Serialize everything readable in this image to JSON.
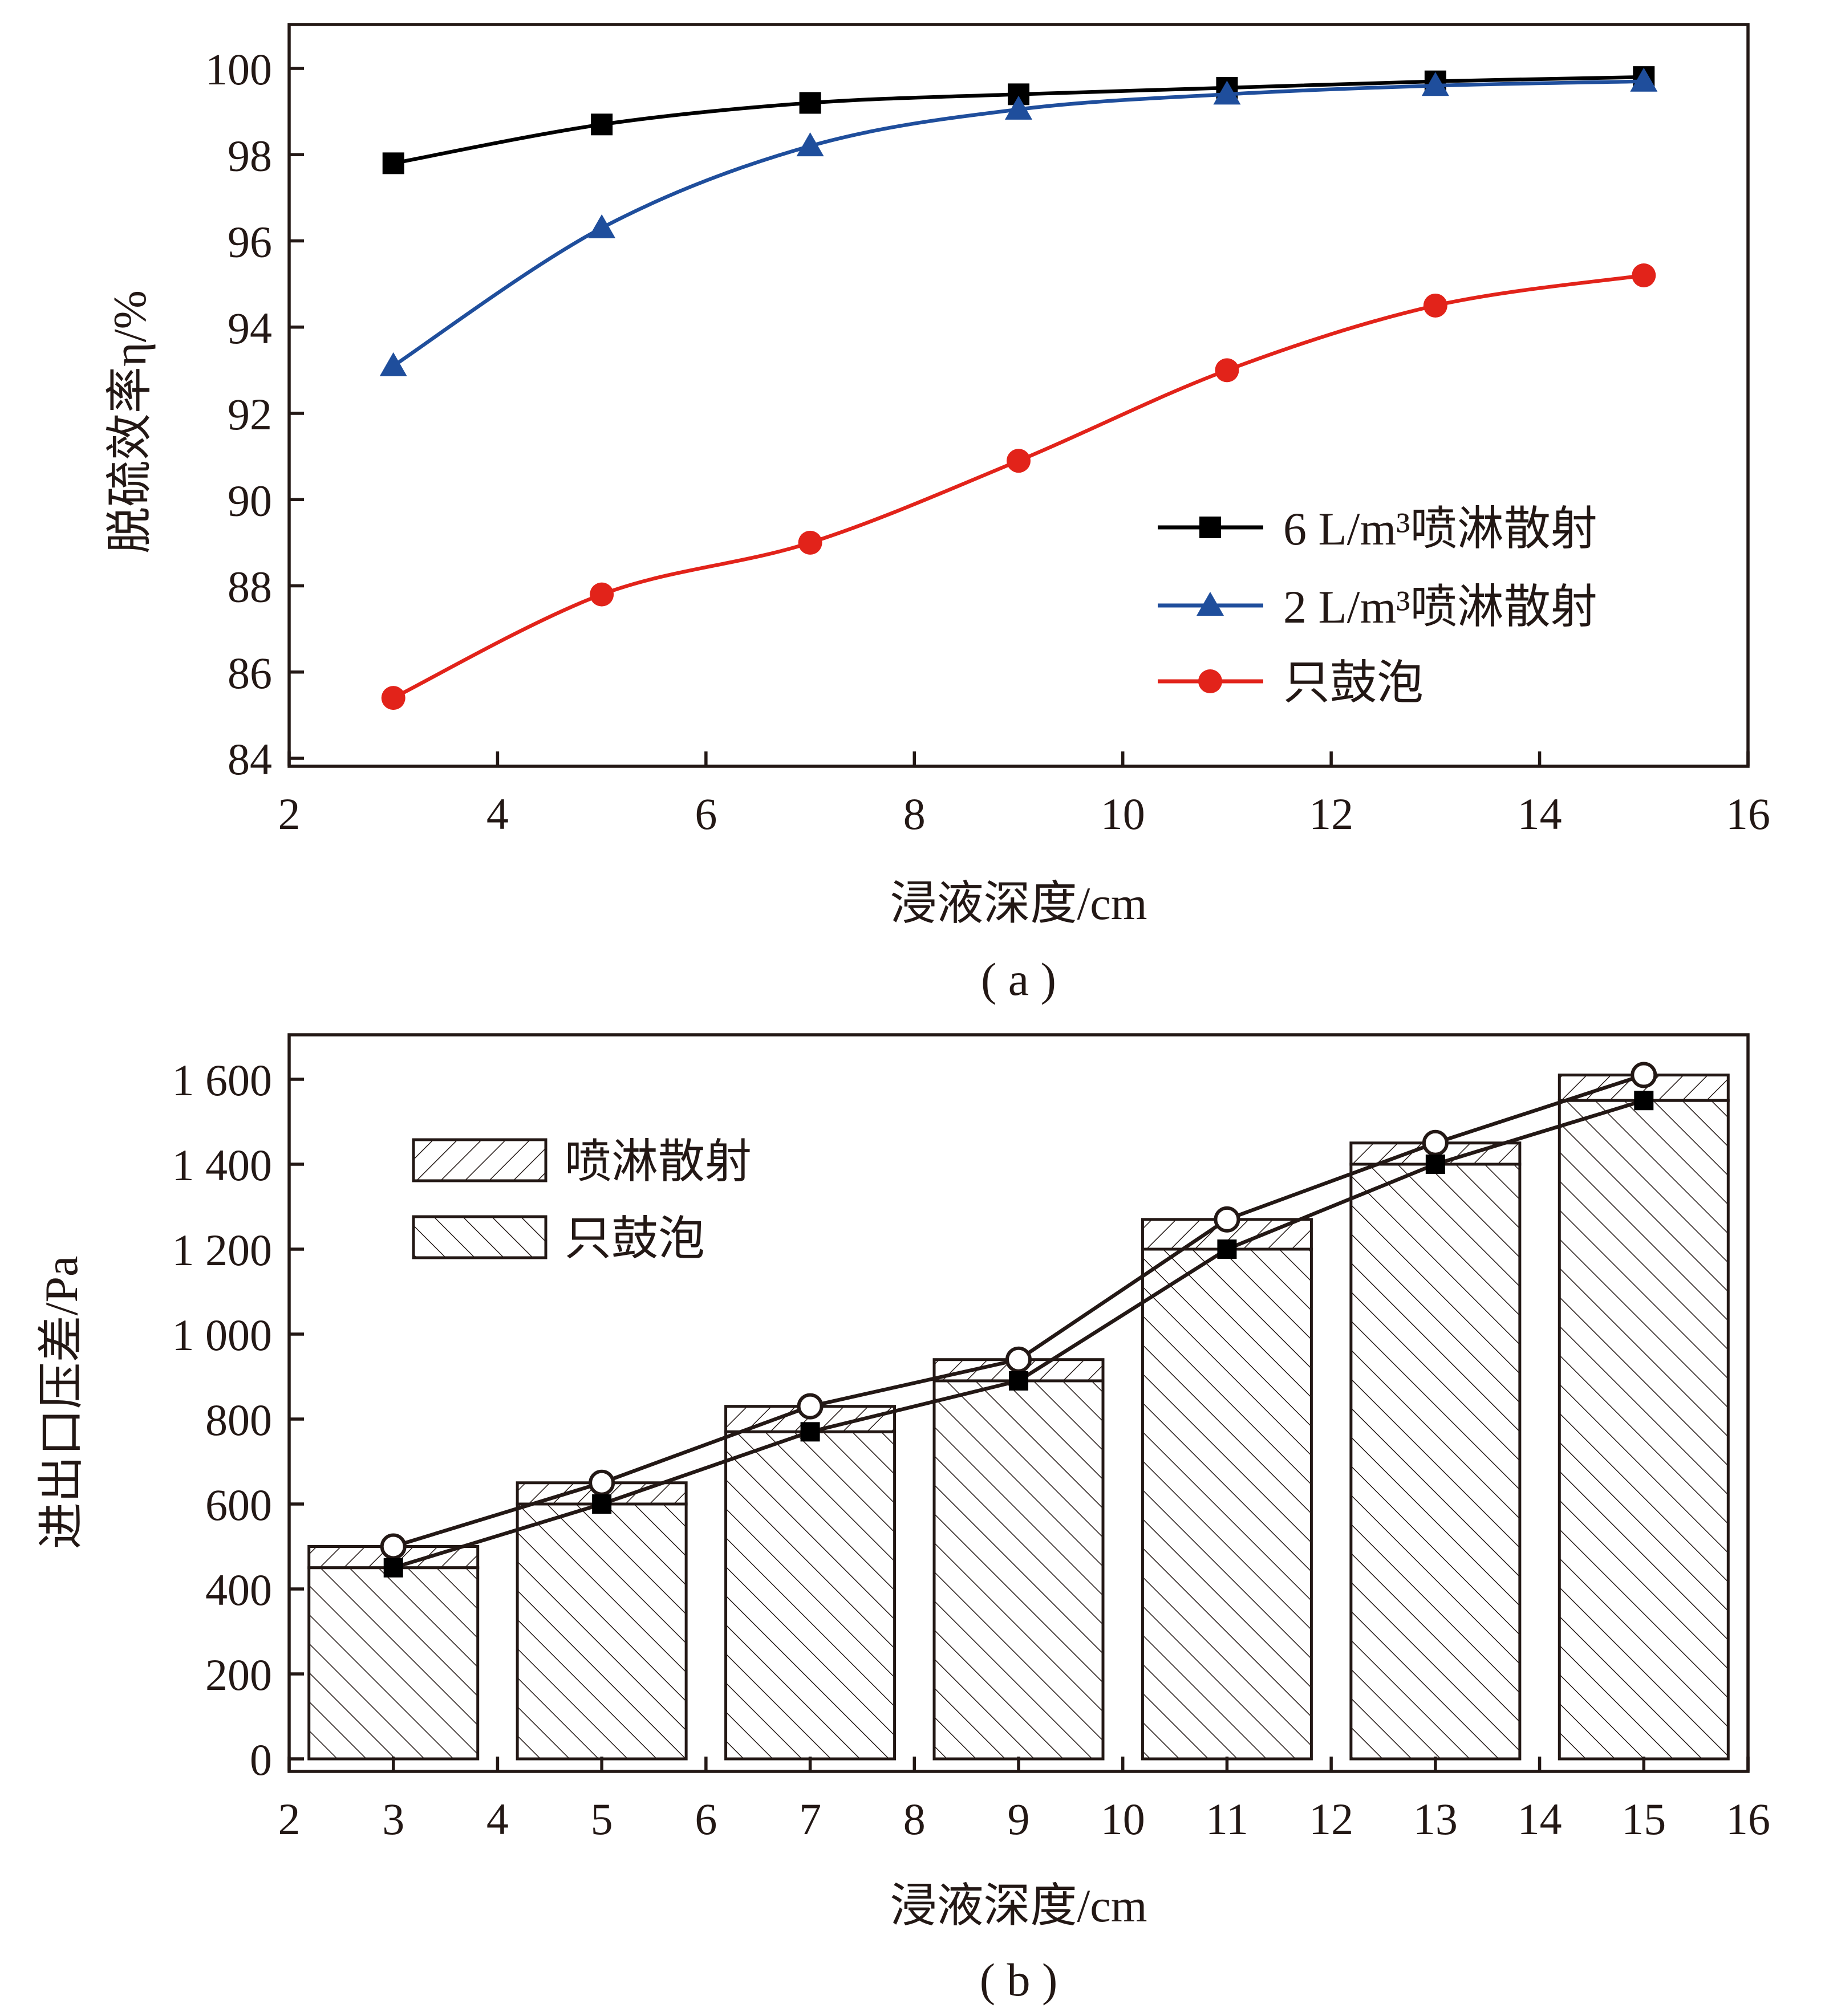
{
  "chart_data": [
    {
      "type": "line",
      "caption": "( a )",
      "xlabel": "浸液深度/cm",
      "ylabel": "脱硫效率η/%",
      "xlim": [
        2,
        16
      ],
      "ylim": [
        84,
        101
      ],
      "xticks": [
        2,
        4,
        6,
        8,
        10,
        12,
        14,
        16
      ],
      "yticks": [
        84,
        86,
        88,
        90,
        92,
        94,
        96,
        98,
        100
      ],
      "x": [
        3,
        5,
        7,
        9,
        11,
        13,
        15
      ],
      "legend_position": "lower-right",
      "series": [
        {
          "name": "6 L/m³喷淋散射",
          "color": "#000000",
          "marker": "square",
          "values": [
            97.8,
            98.7,
            99.2,
            99.4,
            99.55,
            99.7,
            99.8
          ]
        },
        {
          "name": "2 L/m³喷淋散射",
          "color": "#1f4e9c",
          "marker": "triangle",
          "values": [
            93.1,
            96.3,
            98.2,
            99.05,
            99.4,
            99.6,
            99.7
          ]
        },
        {
          "name": "只鼓泡",
          "color": "#e2231a",
          "marker": "circle",
          "values": [
            85.4,
            87.8,
            89.0,
            90.9,
            93.0,
            94.5,
            95.2
          ]
        }
      ]
    },
    {
      "type": "bar",
      "caption": "( b )",
      "xlabel": "浸液深度/cm",
      "ylabel": "进出口压差/Pa",
      "xlim": [
        2,
        16
      ],
      "ylim": [
        0,
        1700
      ],
      "xticks": [
        2,
        3,
        4,
        5,
        6,
        7,
        8,
        9,
        10,
        11,
        12,
        13,
        14,
        15,
        16
      ],
      "yticks": [
        0,
        200,
        400,
        600,
        800,
        1000,
        1200,
        1400,
        1600
      ],
      "ytick_labels": [
        "0",
        "200",
        "400",
        "600",
        "800",
        "1 000",
        "1 200",
        "1 400",
        "1 600"
      ],
      "x": [
        3,
        5,
        7,
        9,
        11,
        13,
        15
      ],
      "legend_position": "top-left",
      "series": [
        {
          "name": "喷淋散射",
          "pattern": "backslash-hatch",
          "marker": "open-circle",
          "values": [
            500,
            650,
            830,
            940,
            1270,
            1450,
            1610
          ]
        },
        {
          "name": "只鼓泡",
          "pattern": "slash-hatch",
          "marker": "filled-square",
          "values": [
            450,
            600,
            770,
            890,
            1200,
            1400,
            1550
          ]
        }
      ]
    }
  ]
}
